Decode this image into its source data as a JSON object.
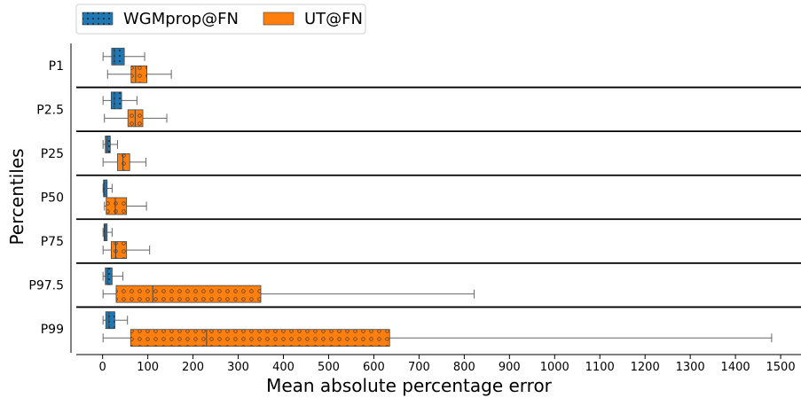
{
  "chart_data": {
    "type": "boxplot",
    "orientation": "horizontal",
    "xlabel": "Mean absolute percentage error",
    "ylabel": "Percentiles",
    "xlim": [
      -70,
      1545
    ],
    "xticks": [
      0,
      100,
      200,
      300,
      400,
      500,
      600,
      700,
      800,
      900,
      1000,
      1100,
      1200,
      1300,
      1400,
      1500
    ],
    "legend": {
      "placement": "top-left",
      "entries": [
        {
          "label": "WGMprop@FN",
          "color": "#1f77b4",
          "hatch": "dots"
        },
        {
          "label": "UT@FN",
          "color": "#ff7f0e",
          "hatch": "circles"
        }
      ]
    },
    "categories": [
      "P1",
      "P2.5",
      "P25",
      "P50",
      "P75",
      "P97.5",
      "P99"
    ],
    "series": [
      {
        "name": "WGMprop@FN",
        "color": "#1f77b4",
        "boxes": [
          {
            "whislo": 1,
            "q1": 20,
            "med": 26,
            "q3": 48,
            "whishi": 93
          },
          {
            "whislo": 1,
            "q1": 19,
            "med": 26,
            "q3": 42,
            "whishi": 76
          },
          {
            "whislo": 1,
            "q1": 6,
            "med": 10,
            "q3": 17,
            "whishi": 33
          },
          {
            "whislo": 1,
            "q1": 2,
            "med": 4,
            "q3": 10,
            "whishi": 21
          },
          {
            "whislo": 1,
            "q1": 3,
            "med": 5,
            "q3": 10,
            "whishi": 21
          },
          {
            "whislo": 1,
            "q1": 6,
            "med": 11,
            "q3": 21,
            "whishi": 45
          },
          {
            "whislo": 1,
            "q1": 7,
            "med": 14,
            "q3": 27,
            "whishi": 55
          }
        ]
      },
      {
        "name": "UT@FN",
        "color": "#ff7f0e",
        "boxes": [
          {
            "whislo": 11,
            "q1": 63,
            "med": 73,
            "q3": 98,
            "whishi": 152
          },
          {
            "whislo": 4,
            "q1": 56,
            "med": 72,
            "q3": 89,
            "whishi": 142
          },
          {
            "whislo": 1,
            "q1": 33,
            "med": 45,
            "q3": 60,
            "whishi": 96
          },
          {
            "whislo": 4,
            "q1": 8,
            "med": 28,
            "q3": 53,
            "whishi": 97
          },
          {
            "whislo": 1,
            "q1": 19,
            "med": 29,
            "q3": 53,
            "whishi": 104
          },
          {
            "whislo": 1,
            "q1": 30,
            "med": 111,
            "q3": 350,
            "whishi": 822
          },
          {
            "whislo": 1,
            "q1": 62,
            "med": 230,
            "q3": 635,
            "whishi": 1480
          }
        ]
      }
    ]
  }
}
